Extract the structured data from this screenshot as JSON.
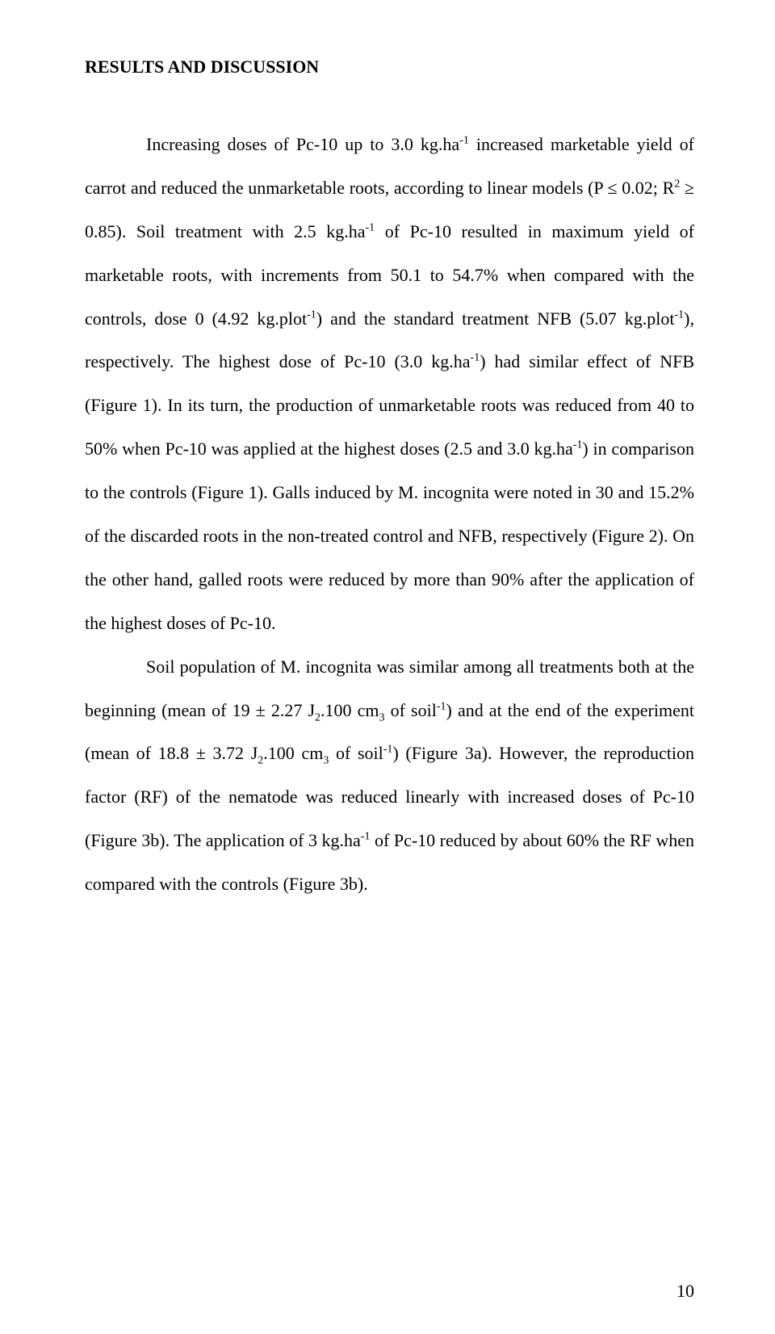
{
  "heading": "RESULTS AND DISCUSSION",
  "p1_a": "Increasing doses of Pc-10 up to 3.0 kg.ha",
  "p1_b": " increased marketable yield of carrot and reduced the unmarketable roots, according to linear models (P ≤ 0.02; R",
  "p1_c": " ≥ 0.85). Soil treatment with 2.5 kg.ha",
  "p1_d": " of Pc-10 resulted in maximum yield of marketable roots, with increments from 50.1 to 54.7% when compared with the controls, dose 0 (4.92 kg.plot",
  "p1_e": ") and the standard treatment NFB (5.07 kg.plot",
  "p1_f": "), respectively. The highest dose of Pc-10 (3.0 kg.ha",
  "p1_g": ") had similar effect of NFB (Figure 1). In its turn, the production of unmarketable roots was reduced from 40 to 50% when Pc-10 was applied at the highest doses (2.5 and 3.0 kg.ha",
  "p1_h": ") in comparison to the controls (Figure 1). Galls induced by M. incognita were noted in 30 and 15.2% of the discarded roots in the non-treated control and NFB, respectively (Figure 2). On the other hand, galled roots were reduced by more than 90% after the application of the highest doses of Pc-10.",
  "p2_a": "Soil population of M. incognita was similar among all treatments both at the beginning (mean of 19 ± 2.27 J",
  "p2_b": ".100 cm",
  "p2_c": " of soil",
  "p2_d": ") and at the end of the experiment (mean of 18.8 ± 3.72 J",
  "p2_e": ".100 cm",
  "p2_f": " of soil",
  "p2_g": ") (Figure 3a). However, the reproduction factor (RF) of the nematode was reduced linearly with increased doses of Pc-10 (Figure 3b). The application of 3 kg.ha",
  "p2_h": " of Pc-10 reduced by about 60% the RF when compared with the controls (Figure 3b).",
  "sup_minus1": "-1",
  "sup_2": "2",
  "sub_2": "2",
  "sub_3": "3",
  "page_number": "10"
}
